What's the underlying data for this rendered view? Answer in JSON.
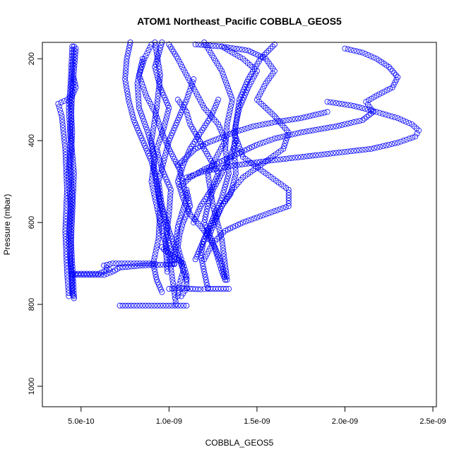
{
  "chart_data": {
    "type": "scatter",
    "title": "ATOM1 Northeast_Pacific COBBLA_GEOS5",
    "xlabel": "COBBLA_GEOS5",
    "ylabel": "Pressure (mbar)",
    "xlim": [
      2.8e-10,
      2.52e-09
    ],
    "ylim": [
      1050,
      160
    ],
    "y_reversed": true,
    "x_ticks": [
      {
        "value": 5e-10,
        "label": "5.0e-10"
      },
      {
        "value": 1e-09,
        "label": "1.0e-09"
      },
      {
        "value": 1.5e-09,
        "label": "1.5e-09"
      },
      {
        "value": 2e-09,
        "label": "2.0e-09"
      },
      {
        "value": 2.5e-09,
        "label": "2.5e-09"
      }
    ],
    "y_ticks": [
      {
        "value": 200,
        "label": "200"
      },
      {
        "value": 400,
        "label": "400"
      },
      {
        "value": 600,
        "label": "600"
      },
      {
        "value": 800,
        "label": "800"
      },
      {
        "value": 1000,
        "label": "1000"
      }
    ],
    "marker": "open-circle",
    "color": "#0000ff",
    "grid": false,
    "series": [
      {
        "x": [
          4.5e-10,
          4.4e-10,
          4.3e-10,
          4.4e-10,
          4.3e-10,
          4.4e-10,
          4.3e-10,
          4.4e-10,
          4.5e-10,
          4.5e-10,
          4.6e-10
        ],
        "y": [
          170,
          260,
          320,
          400,
          480,
          560,
          640,
          700,
          740,
          770,
          785
        ]
      },
      {
        "x": [
          4.6e-10,
          4.5e-10,
          4.4e-10,
          4.5e-10,
          4.4e-10,
          4.5e-10,
          4.4e-10,
          4.5e-10,
          4.6e-10
        ],
        "y": [
          170,
          230,
          300,
          380,
          460,
          540,
          620,
          700,
          780
        ]
      },
      {
        "x": [
          4.6e-10,
          4.7e-10,
          4.5e-10,
          4.2e-10,
          3.7e-10,
          3.9e-10,
          4.1e-10,
          4.2e-10,
          4.1e-10,
          4.2e-10,
          4.3e-10
        ],
        "y": [
          250,
          270,
          290,
          300,
          310,
          340,
          420,
          520,
          620,
          720,
          780
        ]
      },
      {
        "x": [
          4.7e-10,
          4.5e-10,
          4.4e-10,
          4.6e-10,
          4.5e-10,
          4.4e-10,
          4.5e-10
        ],
        "y": [
          175,
          280,
          380,
          480,
          580,
          680,
          775
        ]
      },
      {
        "x": [
          4.5e-10,
          6e-10,
          6.6e-10,
          6.3e-10,
          6.8e-10,
          8e-10,
          9.2e-10
        ],
        "y": [
          725,
          725,
          715,
          705,
          700,
          700,
          700
        ]
      },
      {
        "x": [
          4.5e-10,
          6.3e-10,
          6.8e-10,
          7.2e-10,
          8.5e-10,
          9.5e-10,
          1.03e-09
        ],
        "y": [
          728,
          728,
          720,
          710,
          705,
          703,
          702
        ]
      },
      {
        "x": [
          7.2e-10,
          8e-10,
          9e-10,
          1e-09,
          1.05e-09,
          1.1e-09
        ],
        "y": [
          803,
          803,
          803,
          803,
          803,
          803
        ]
      },
      {
        "x": [
          1e-09,
          1.07e-09,
          1.12e-09,
          1.18e-09,
          1.22e-09,
          1.28e-09,
          1.34e-09
        ],
        "y": [
          762,
          760,
          762,
          763,
          762,
          762,
          762
        ]
      },
      {
        "x": [
          1.07e-09,
          1.1e-09,
          1.1e-09,
          1.08e-09,
          1.02e-09,
          9.8e-10,
          9.6e-10
        ],
        "y": [
          780,
          760,
          730,
          700,
          680,
          670,
          660
        ]
      },
      {
        "x": [
          7.8e-10,
          7.6e-10,
          7.5e-10,
          7.7e-10,
          8e-10,
          8.5e-10,
          9e-10,
          9.3e-10,
          9.5e-10,
          9.8e-10,
          1e-09,
          1.02e-09
        ],
        "y": [
          160,
          200,
          250,
          300,
          350,
          400,
          450,
          500,
          550,
          600,
          650,
          700
        ]
      },
      {
        "x": [
          9e-10,
          8.6e-10,
          8.3e-10,
          8.7e-10,
          9.2e-10,
          9.6e-10,
          1e-09,
          1.06e-09,
          1.1e-09,
          1.05e-09,
          1.03e-09
        ],
        "y": [
          165,
          200,
          240,
          290,
          330,
          380,
          420,
          470,
          540,
          610,
          700
        ]
      },
      {
        "x": [
          9.6e-10,
          9.2e-10,
          9.5e-10,
          1e-09,
          9.7e-10,
          9.3e-10,
          9.6e-10,
          1.01e-09,
          1e-09,
          9.8e-10,
          9.9e-10
        ],
        "y": [
          160,
          220,
          270,
          320,
          370,
          420,
          470,
          520,
          580,
          650,
          720
        ]
      },
      {
        "x": [
          2e-09,
          2.1e-09,
          2.18e-09,
          2.25e-09,
          2.3e-09,
          2.27e-09,
          2.18e-09,
          2.12e-09,
          2.16e-09,
          2.1e-09,
          1.95e-09,
          1.75e-09,
          1.6e-09,
          1.5e-09,
          1.4e-09,
          1.3e-09,
          1.2e-09,
          1.12e-09,
          1.07e-09
        ],
        "y": [
          175,
          185,
          200,
          220,
          245,
          270,
          290,
          305,
          330,
          350,
          365,
          380,
          395,
          410,
          430,
          450,
          470,
          490,
          510
        ]
      },
      {
        "x": [
          1.9e-09,
          2.05e-09,
          2.18e-09,
          2.3e-09,
          2.38e-09,
          2.42e-09,
          2.4e-09,
          2.3e-09,
          2.15e-09,
          1.95e-09,
          1.75e-09,
          1.55e-09,
          1.35e-09,
          1.2e-09,
          1.1e-09
        ],
        "y": [
          305,
          315,
          330,
          345,
          360,
          375,
          390,
          405,
          420,
          430,
          440,
          450,
          462,
          475,
          490
        ]
      },
      {
        "x": [
          1.9e-09,
          1.75e-09,
          1.6e-09,
          1.48e-09,
          1.38e-09,
          1.3e-09,
          1.22e-09,
          1.15e-09,
          1.1e-09,
          1.05e-09
        ],
        "y": [
          330,
          345,
          355,
          365,
          378,
          392,
          405,
          420,
          440,
          460
        ]
      },
      {
        "x": [
          1.15e-09,
          1.3e-09,
          1.45e-09,
          1.55e-09,
          1.6e-09,
          1.55e-09,
          1.5e-09,
          1.6e-09,
          1.68e-09,
          1.65e-09,
          1.52e-09,
          1.42e-09,
          1.36e-09,
          1.3e-09,
          1.26e-09,
          1.22e-09
        ],
        "y": [
          165,
          170,
          180,
          200,
          230,
          260,
          300,
          340,
          380,
          420,
          460,
          490,
          520,
          560,
          600,
          640
        ]
      },
      {
        "x": [
          1.3e-09,
          1.42e-09,
          1.5e-09,
          1.45e-09,
          1.4e-09,
          1.37e-09,
          1.42e-09,
          1.55e-09,
          1.68e-09,
          1.68e-09,
          1.55e-09,
          1.42e-09,
          1.32e-09,
          1.25e-09,
          1.2e-09
        ],
        "y": [
          170,
          200,
          230,
          270,
          320,
          380,
          440,
          480,
          520,
          560,
          580,
          600,
          620,
          650,
          690
        ]
      },
      {
        "x": [
          1.2e-09,
          1.3e-09,
          1.36e-09,
          1.33e-09,
          1.32e-09,
          1.34e-09,
          1.3e-09,
          1.25e-09,
          1.2e-09,
          1.15e-09
        ],
        "y": [
          160,
          230,
          300,
          360,
          420,
          480,
          540,
          590,
          640,
          690
        ]
      },
      {
        "x": [
          1.6e-09,
          1.52e-09,
          1.45e-09,
          1.4e-09,
          1.38e-09,
          1.37e-09,
          1.38e-09,
          1.35e-09,
          1.3e-09,
          1.25e-09,
          1.2e-09,
          1.18e-09,
          1.2e-09,
          1.22e-09
        ],
        "y": [
          165,
          200,
          250,
          300,
          360,
          420,
          480,
          530,
          560,
          600,
          640,
          680,
          720,
          760
        ]
      },
      {
        "x": [
          1e-09,
          1.05e-09,
          1.1e-09,
          1.15e-09,
          1.2e-09,
          1.28e-09,
          1.32e-09,
          1.27e-09,
          1.22e-09,
          1.25e-09,
          1.3e-09,
          1.33e-09
        ],
        "y": [
          165,
          200,
          240,
          280,
          320,
          360,
          400,
          440,
          480,
          560,
          640,
          740
        ]
      },
      {
        "x": [
          1.05e-09,
          1.1e-09,
          1.12e-09,
          1.16e-09,
          1.2e-09,
          1.24e-09,
          1.28e-09,
          1.24e-09,
          1.18e-09,
          1.14e-09
        ],
        "y": [
          300,
          330,
          360,
          390,
          420,
          450,
          480,
          520,
          560,
          600
        ]
      },
      {
        "x": [
          8.5e-10,
          8.2e-10,
          8.3e-10,
          8.8e-10,
          9.2e-10,
          9e-10,
          9.3e-10,
          9.6e-10,
          1e-09,
          1.02e-09,
          1.04e-09
        ],
        "y": [
          200,
          260,
          320,
          380,
          440,
          500,
          560,
          620,
          680,
          740,
          800
        ]
      },
      {
        "x": [
          1.14e-09,
          1.1e-09,
          1.05e-09,
          1e-09,
          9.7e-10,
          9.4e-10,
          9.6e-10,
          1e-09,
          1.05e-09,
          1.1e-09
        ],
        "y": [
          250,
          300,
          350,
          400,
          450,
          500,
          560,
          620,
          680,
          740
        ]
      },
      {
        "x": [
          1.28e-09,
          1.24e-09,
          1.18e-09,
          1.12e-09,
          1.08e-09,
          1.05e-09,
          1.08e-09,
          1.12e-09,
          1.2e-09,
          1.26e-09,
          1.3e-09,
          1.32e-09
        ],
        "y": [
          300,
          340,
          380,
          420,
          460,
          500,
          540,
          580,
          620,
          660,
          700,
          740
        ]
      },
      {
        "x": [
          9.2e-10,
          9.5e-10,
          9.3e-10,
          9e-10,
          9.2e-10,
          9.5e-10,
          9.4e-10,
          9.1e-10,
          9.3e-10,
          9.6e-10
        ],
        "y": [
          160,
          240,
          320,
          400,
          480,
          560,
          640,
          700,
          740,
          770
        ]
      },
      {
        "x": [
          1.1e-09,
          1.12e-09,
          1.08e-09,
          1.06e-09,
          1.05e-09,
          1.07e-09,
          1.08e-09,
          1.06e-09,
          1.05e-09
        ],
        "y": [
          520,
          560,
          600,
          630,
          660,
          690,
          720,
          750,
          780
        ]
      },
      {
        "x": [
          1.38e-09,
          1.35e-09,
          1.3e-09,
          1.25e-09,
          1.22e-09,
          1.2e-09,
          1.25e-09,
          1.28e-09,
          1.3e-09,
          1.32e-09
        ],
        "y": [
          400,
          440,
          480,
          520,
          560,
          600,
          650,
          690,
          720,
          740
        ]
      }
    ]
  }
}
